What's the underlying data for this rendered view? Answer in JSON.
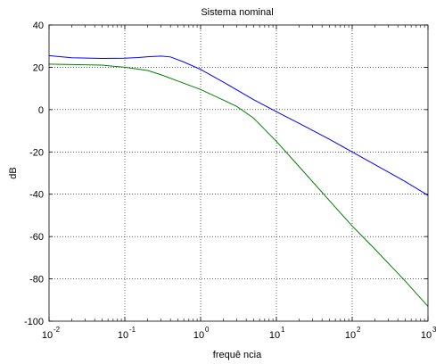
{
  "chart_data": {
    "type": "line",
    "title": "Sistema nominal",
    "xlabel": "frequê ncia",
    "ylabel": "dB",
    "xscale": "log",
    "xlim": [
      0.01,
      1000
    ],
    "ylim": [
      -100,
      40
    ],
    "grid": true,
    "x_ticks": [
      {
        "base": "10",
        "exp": "-2",
        "value": 0.01
      },
      {
        "base": "10",
        "exp": "-1",
        "value": 0.1
      },
      {
        "base": "10",
        "exp": "0",
        "value": 1
      },
      {
        "base": "10",
        "exp": "1",
        "value": 10
      },
      {
        "base": "10",
        "exp": "2",
        "value": 100
      },
      {
        "base": "10",
        "exp": "3",
        "value": 1000
      }
    ],
    "y_ticks": [
      "40",
      "20",
      "0",
      "-20",
      "-40",
      "-60",
      "-80",
      "-100"
    ],
    "series": [
      {
        "color": "#0000ff",
        "x": [
          0.01,
          0.02,
          0.05,
          0.1,
          0.15,
          0.2,
          0.3,
          0.4,
          0.6,
          1,
          2,
          5,
          10,
          20,
          50,
          100,
          200,
          500,
          1000
        ],
        "y": [
          25.5,
          24.5,
          24.2,
          24.3,
          24.6,
          25.0,
          25.3,
          24.9,
          22.5,
          19.0,
          13.0,
          4.7,
          -1.0,
          -6.5,
          -14.0,
          -20.0,
          -26.0,
          -34.0,
          -40.5
        ]
      },
      {
        "color": "#008000",
        "x": [
          0.01,
          0.02,
          0.05,
          0.1,
          0.2,
          0.3,
          0.5,
          1,
          2,
          3,
          5,
          10,
          20,
          50,
          100,
          200,
          500,
          1000
        ],
        "y": [
          21.5,
          21.3,
          21.0,
          20.0,
          18.5,
          16.5,
          13.5,
          9.5,
          4.5,
          1.5,
          -4.0,
          -15.0,
          -27.0,
          -43.0,
          -55.0,
          -66.0,
          -81.0,
          -93.0
        ]
      }
    ]
  }
}
